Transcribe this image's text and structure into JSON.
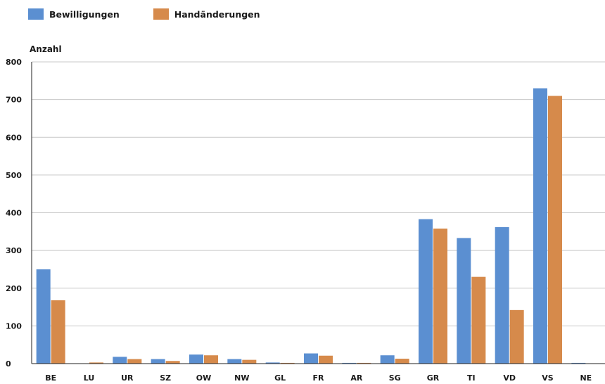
{
  "chart_data": {
    "type": "bar",
    "title": "",
    "xlabel": "",
    "ylabel": "Anzahl",
    "categories": [
      "BE",
      "LU",
      "UR",
      "SZ",
      "OW",
      "NW",
      "GL",
      "FR",
      "AR",
      "SG",
      "GR",
      "TI",
      "VD",
      "VS",
      "NE"
    ],
    "series": [
      {
        "name": "Bewilligungen",
        "color": "#5b8fd1",
        "values": [
          250,
          0,
          18,
          12,
          24,
          12,
          3,
          27,
          2,
          22,
          383,
          333,
          362,
          730,
          2
        ]
      },
      {
        "name": "Handänderungen",
        "color": "#d68a4b",
        "values": [
          168,
          3,
          12,
          7,
          22,
          10,
          2,
          21,
          2,
          13,
          358,
          230,
          142,
          710,
          0
        ]
      }
    ],
    "ylim": [
      0,
      800
    ],
    "yticks": [
      0,
      100,
      200,
      300,
      400,
      500,
      600,
      700,
      800
    ],
    "grid": true,
    "legend_position": "top-left"
  }
}
